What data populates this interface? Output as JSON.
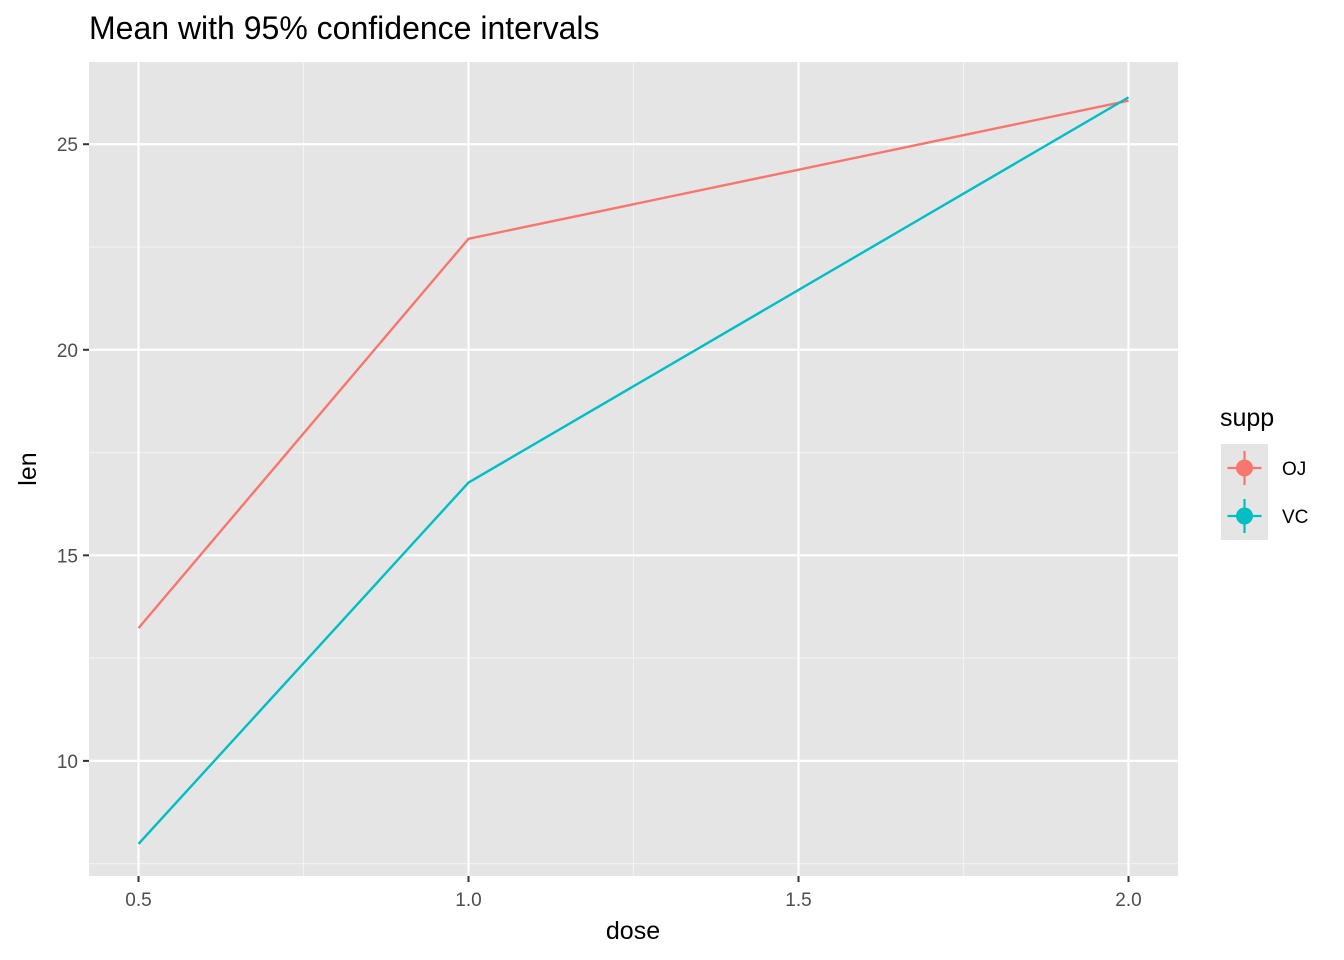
{
  "chart_data": {
    "type": "line",
    "title": "Mean with 95% confidence intervals",
    "xlabel": "dose",
    "ylabel": "len",
    "x": [
      0.5,
      1.0,
      2.0
    ],
    "xticks": [
      "0.5",
      "1.0",
      "1.5",
      "2.0"
    ],
    "xtick_values": [
      0.5,
      1.0,
      1.5,
      2.0
    ],
    "yticks": [
      "10",
      "15",
      "20",
      "25"
    ],
    "ytick_values": [
      10,
      15,
      20,
      25
    ],
    "xlim": [
      0.425,
      2.075
    ],
    "ylim": [
      7.2,
      27.0
    ],
    "grid": true,
    "legend": {
      "title": "supp",
      "placement": "right"
    },
    "series": [
      {
        "name": "OJ",
        "color": "#F8766D",
        "values": [
          13.23,
          22.7,
          26.06
        ]
      },
      {
        "name": "VC",
        "color": "#00BFC4",
        "values": [
          7.98,
          16.77,
          26.14
        ]
      }
    ]
  },
  "colors": {
    "panel_background": "#E5E5E5",
    "grid_major": "#FFFFFF",
    "grid_minor": "#F2F2F2",
    "tick_mark": "#333333",
    "tick_text": "#4D4D4D"
  }
}
